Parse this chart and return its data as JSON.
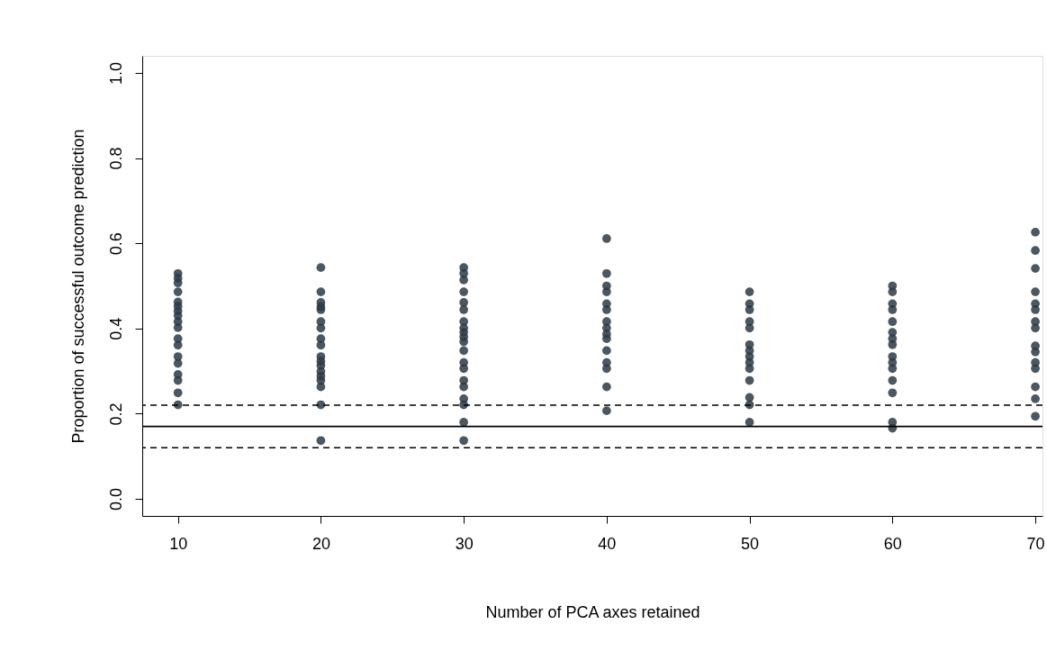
{
  "chart_data": {
    "type": "scatter",
    "xlabel": "Number of PCA axes retained",
    "ylabel": "Proportion of successful outcome prediction",
    "xlim": [
      7.5,
      70.5
    ],
    "xticks": [
      10,
      20,
      30,
      40,
      50,
      60,
      70
    ],
    "ylim": [
      -0.04,
      1.04
    ],
    "yticks": [
      {
        "value": 0,
        "label": "0.0"
      },
      0.2,
      0.4,
      0.6,
      0.8,
      {
        "value": 1,
        "label": "1.0"
      }
    ],
    "grid": false,
    "marker": "circle",
    "series": [
      {
        "color": "#2b3a45",
        "x": [
          10,
          10,
          10,
          10,
          10,
          10,
          10,
          10,
          10,
          10,
          10,
          10,
          10,
          10,
          10,
          10,
          10,
          10,
          20,
          20,
          20,
          20,
          20,
          20,
          20,
          20,
          20,
          20,
          20,
          20,
          20,
          20,
          20,
          20,
          20,
          20,
          30,
          30,
          30,
          30,
          30,
          30,
          30,
          30,
          30,
          30,
          30,
          30,
          30,
          30,
          30,
          30,
          30,
          30,
          30,
          30,
          40,
          40,
          40,
          40,
          40,
          40,
          40,
          40,
          40,
          40,
          40,
          40,
          40,
          40,
          40,
          50,
          50,
          50,
          50,
          50,
          50,
          50,
          50,
          50,
          50,
          50,
          50,
          50,
          50,
          60,
          60,
          60,
          60,
          60,
          60,
          60,
          60,
          60,
          60,
          60,
          60,
          60,
          60,
          60,
          70,
          70,
          70,
          70,
          70,
          70,
          70,
          70,
          70,
          70,
          70,
          70,
          70,
          70,
          70
        ],
        "values": [
          0.529,
          0.518,
          0.507,
          0.486,
          0.462,
          0.452,
          0.441,
          0.43,
          0.416,
          0.402,
          0.376,
          0.361,
          0.334,
          0.318,
          0.292,
          0.278,
          0.249,
          0.221,
          0.543,
          0.486,
          0.461,
          0.451,
          0.444,
          0.416,
          0.401,
          0.376,
          0.361,
          0.334,
          0.323,
          0.313,
          0.299,
          0.288,
          0.278,
          0.263,
          0.221,
          0.137,
          0.543,
          0.529,
          0.514,
          0.486,
          0.461,
          0.444,
          0.416,
          0.401,
          0.391,
          0.38,
          0.369,
          0.348,
          0.32,
          0.306,
          0.278,
          0.263,
          0.235,
          0.221,
          0.18,
          0.137,
          0.611,
          0.529,
          0.5,
          0.486,
          0.458,
          0.444,
          0.416,
          0.401,
          0.387,
          0.376,
          0.348,
          0.32,
          0.306,
          0.263,
          0.207,
          0.486,
          0.458,
          0.444,
          0.416,
          0.401,
          0.362,
          0.348,
          0.334,
          0.32,
          0.306,
          0.278,
          0.238,
          0.221,
          0.18,
          0.5,
          0.486,
          0.458,
          0.444,
          0.416,
          0.391,
          0.376,
          0.362,
          0.334,
          0.32,
          0.306,
          0.278,
          0.249,
          0.18,
          0.166,
          0.626,
          0.583,
          0.541,
          0.486,
          0.458,
          0.444,
          0.416,
          0.401,
          0.359,
          0.345,
          0.32,
          0.306,
          0.263,
          0.235,
          0.194
        ]
      }
    ],
    "ref_lines": [
      {
        "axis": "y",
        "value": 0.17,
        "line_style": "solid",
        "color": "#000000"
      },
      {
        "axis": "y",
        "value": 0.22,
        "line_style": "dashed",
        "color": "#000000"
      },
      {
        "axis": "y",
        "value": 0.12,
        "line_style": "dashed",
        "color": "#000000"
      }
    ]
  }
}
